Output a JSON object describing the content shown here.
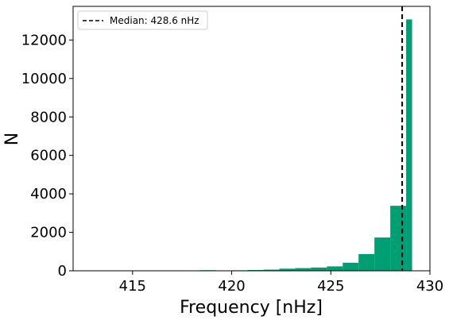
{
  "chart_data": {
    "type": "bar",
    "xlabel": "Frequency [nHz]",
    "ylabel": "N",
    "xlim": [
      412,
      430
    ],
    "ylim": [
      0,
      13750
    ],
    "xticks": [
      "415",
      "420",
      "425",
      "430"
    ],
    "yticks": [
      "0",
      "2000",
      "4000",
      "6000",
      "8000",
      "10000",
      "12000"
    ],
    "bin_edges": [
      412.8,
      413.6,
      414.4,
      415.2,
      416.0,
      416.8,
      417.6,
      418.4,
      419.2,
      420.0,
      420.8,
      421.6,
      422.4,
      423.2,
      424.0,
      424.8,
      425.6,
      426.4,
      427.2,
      428.0,
      428.8,
      429.1
    ],
    "counts": [
      0,
      0,
      0,
      0,
      0,
      0,
      0,
      30,
      15,
      25,
      40,
      60,
      110,
      140,
      170,
      230,
      420,
      870,
      1730,
      3380,
      13070
    ],
    "bar_color": "#009e73",
    "median": {
      "value": 428.6,
      "label": "Median: 428.6 nHz",
      "color": "#000000",
      "style": "dashed"
    },
    "legend_position": "top-left"
  }
}
